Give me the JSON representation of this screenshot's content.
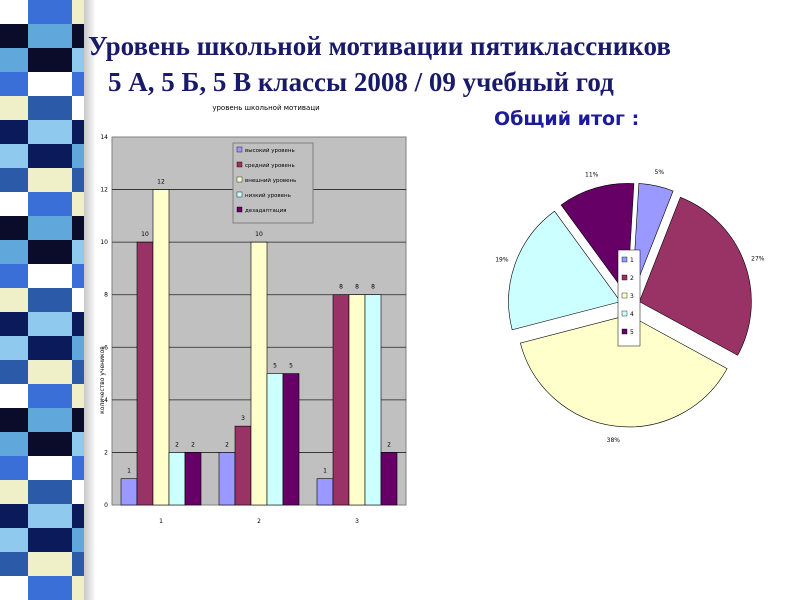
{
  "slide": {
    "title_line1": "Уровень школьной мотивации пятиклассников",
    "title_line2": "5 А, 5 Б, 5 В классы 2008 / 09 учебный год",
    "summary_heading": "Общий итог :"
  },
  "colors": {
    "strip": [
      "#0a1a5a",
      "#ffffff",
      "#3a6fd8",
      "#8fc9ee",
      "#0b0b2a",
      "#f0f0c8",
      "#2a5aa8",
      "#60a8dc"
    ]
  },
  "chart_data": [
    {
      "type": "bar",
      "title": "уровень школьной мотиваци",
      "ylabel": "количество учеников",
      "xlabel": "",
      "categories": [
        "1",
        "2",
        "3"
      ],
      "ylim": [
        0,
        14
      ],
      "yticks": [
        0,
        2,
        4,
        6,
        8,
        10,
        12,
        14
      ],
      "grid": true,
      "legend_position": "top-center",
      "series": [
        {
          "name": "высокий уровень",
          "color": "#9999ff",
          "values": [
            1,
            2,
            1
          ]
        },
        {
          "name": "средний уровень",
          "color": "#993366",
          "values": [
            10,
            3,
            8
          ]
        },
        {
          "name": "внешний уровень",
          "color": "#ffffcc",
          "values": [
            12,
            10,
            8
          ]
        },
        {
          "name": "низкий уровень",
          "color": "#ccffff",
          "values": [
            2,
            5,
            8
          ]
        },
        {
          "name": "дезадаптация",
          "color": "#660066",
          "values": [
            2,
            5,
            2
          ]
        }
      ]
    },
    {
      "type": "pie",
      "title": "Общий итог :",
      "legend_position": "center",
      "slices": [
        {
          "label": "1",
          "value": 5,
          "display": "5%",
          "color": "#9999ff"
        },
        {
          "label": "2",
          "value": 27,
          "display": "27%",
          "color": "#993366"
        },
        {
          "label": "3",
          "value": 38,
          "display": "38%",
          "color": "#ffffcc"
        },
        {
          "label": "4",
          "value": 19,
          "display": "19%",
          "color": "#ccffff"
        },
        {
          "label": "5",
          "value": 11,
          "display": "11%",
          "color": "#660066"
        }
      ]
    }
  ]
}
